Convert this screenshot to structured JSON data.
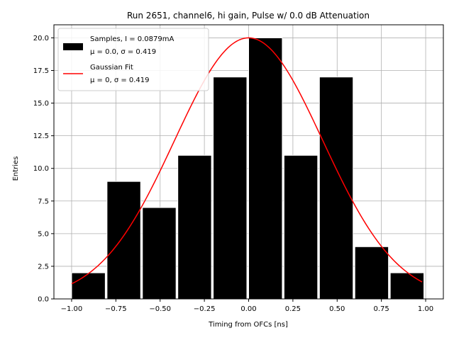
{
  "chart_data": {
    "type": "bar",
    "title": "Run 2651, channel6, hi gain, Pulse w/ 0.0 dB Attenuation",
    "xlabel": "Timing from OFCs [ns]",
    "ylabel": "Entries",
    "xlim": [
      -1.1,
      1.1
    ],
    "ylim": [
      0,
      21
    ],
    "xticks": [
      -1.0,
      -0.75,
      -0.5,
      -0.25,
      0.0,
      0.25,
      0.5,
      0.75,
      1.0
    ],
    "xtick_labels": [
      "−1.00",
      "−0.75",
      "−0.50",
      "−0.25",
      "0.00",
      "0.25",
      "0.50",
      "0.75",
      "1.00"
    ],
    "yticks": [
      0,
      2.5,
      5,
      7.5,
      10,
      12.5,
      15,
      17.5,
      20
    ],
    "ytick_labels": [
      "0.0",
      "2.5",
      "5.0",
      "7.5",
      "10.0",
      "12.5",
      "15.0",
      "17.5",
      "20.0"
    ],
    "grid": true,
    "legend_position": "top-left",
    "histogram": {
      "name": "Samples, I = 0.0879mA",
      "name_line2": "μ = 0.0, σ = 0.419",
      "color": "#000000",
      "edgecolor": "#ffffff",
      "bin_edges": [
        -1.0,
        -0.8,
        -0.6,
        -0.4,
        -0.2,
        0.0,
        0.2,
        0.4,
        0.6,
        0.8,
        1.0
      ],
      "bar_starts": [
        -1.0,
        -0.8,
        -0.6,
        -0.4,
        -0.2,
        0.0,
        0.2,
        0.4,
        0.6,
        0.8
      ],
      "bar_width": 0.19,
      "values": [
        2,
        9,
        7,
        11,
        17,
        20,
        11,
        17,
        4,
        2
      ]
    },
    "fit": {
      "name": "Gaussian Fit",
      "name_line2": "μ = 0, σ = 0.419",
      "color": "#ff0000",
      "mu": 0,
      "sigma": 0.419,
      "amplitude": 20,
      "x_range": [
        -1.0,
        0.98
      ]
    }
  }
}
